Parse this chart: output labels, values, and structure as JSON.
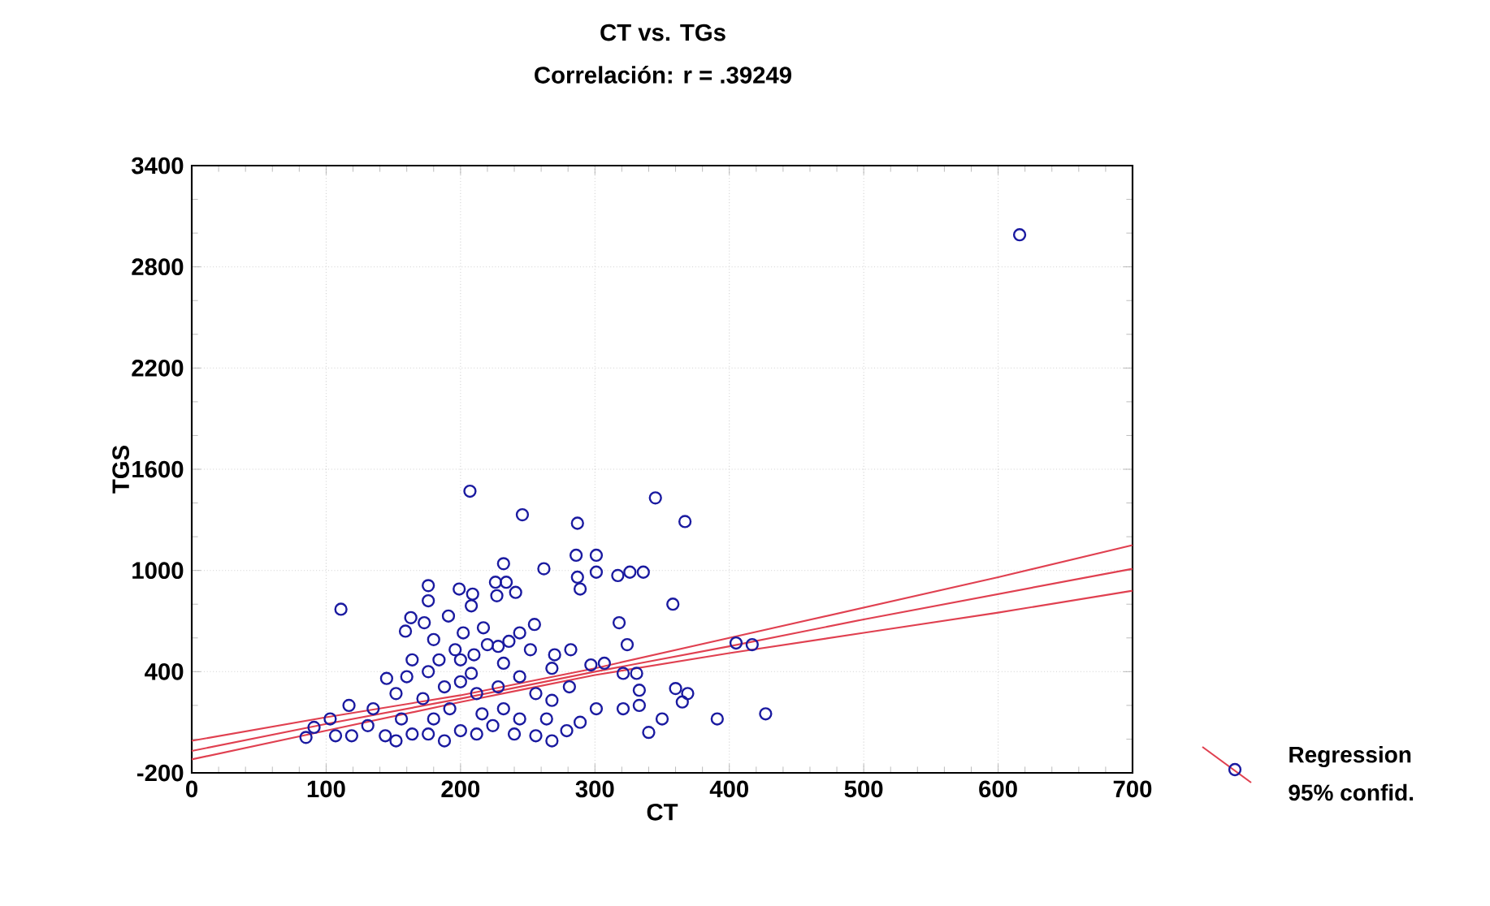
{
  "chart_data": {
    "type": "scatter",
    "title": "CT    vs.    TGs",
    "subtitle": "Correlación: r = .39249",
    "xlabel": "CT",
    "ylabel": "TGS",
    "xlim": [
      0,
      700
    ],
    "ylim": [
      -200,
      3400
    ],
    "xticks": [
      0,
      100,
      200,
      300,
      400,
      500,
      600,
      700
    ],
    "yticks": [
      -200,
      400,
      1000,
      1600,
      2200,
      2800,
      3400
    ],
    "grid": true,
    "legend": "bottom right",
    "annotations": [
      "95% confid."
    ],
    "series": [
      {
        "marker": "circle",
        "color": "#1a1aa0",
        "x": [
          207,
          246,
          287,
          345,
          367,
          286,
          301,
          232,
          262,
          301,
          287,
          289,
          317,
          326,
          336,
          226,
          234,
          227,
          241,
          176,
          176,
          199,
          209,
          208,
          111,
          358,
          163,
          173,
          191,
          159,
          180,
          202,
          217,
          244,
          255,
          318,
          324,
          282,
          405,
          417,
          427,
          391,
          350,
          360,
          369,
          365,
          340,
          117,
          85,
          91,
          103,
          152,
          188,
          268,
          256,
          145,
          164,
          184,
          200,
          210,
          228,
          236,
          252,
          270,
          268,
          297,
          307,
          321,
          331,
          333,
          333,
          321,
          301,
          289,
          279,
          240,
          224,
          212,
          200,
          176,
          164,
          144,
          131,
          119,
          107,
          135,
          152,
          160,
          172,
          188,
          200,
          212,
          228,
          244,
          256,
          268,
          281,
          232,
          216,
          192,
          180,
          156,
          244,
          264,
          208,
          232,
          220,
          196,
          176,
          616
        ],
        "values": [
          1470,
          1330,
          1280,
          1430,
          1290,
          1090,
          1090,
          1040,
          1010,
          990,
          960,
          890,
          970,
          990,
          990,
          930,
          930,
          850,
          870,
          910,
          820,
          890,
          860,
          790,
          770,
          800,
          720,
          690,
          730,
          640,
          590,
          630,
          660,
          630,
          680,
          690,
          560,
          530,
          570,
          560,
          150,
          120,
          120,
          300,
          270,
          220,
          40,
          200,
          10,
          70,
          120,
          -10,
          -10,
          -10,
          20,
          360,
          470,
          470,
          470,
          500,
          550,
          580,
          530,
          500,
          420,
          440,
          450,
          390,
          390,
          290,
          200,
          180,
          180,
          100,
          50,
          30,
          80,
          30,
          50,
          30,
          30,
          20,
          80,
          20,
          20,
          180,
          270,
          370,
          240,
          310,
          340,
          270,
          310,
          370,
          270,
          230,
          310,
          180,
          150,
          180,
          120,
          120,
          120,
          120,
          390,
          450,
          560,
          530,
          400,
          2990
        ]
      },
      {
        "type": "line",
        "name": "Regression",
        "color": "#e04050",
        "line_style": "solid",
        "x": [
          0,
          100,
          200,
          250,
          300,
          400,
          500,
          600,
          700
        ],
        "values": [
          -70,
          90,
          240,
          320,
          400,
          550,
          710,
          860,
          1010
        ]
      },
      {
        "type": "line",
        "color": "#e04050",
        "line_style": "solid",
        "x": [
          0,
          100,
          200,
          250,
          300,
          400,
          500,
          600,
          700
        ],
        "values": [
          -120,
          50,
          220,
          300,
          380,
          510,
          630,
          750,
          880
        ]
      },
      {
        "type": "line",
        "color": "#e04050",
        "line_style": "solid",
        "x": [
          0,
          100,
          200,
          250,
          300,
          400,
          500,
          600,
          700
        ],
        "values": [
          -10,
          130,
          260,
          340,
          420,
          600,
          780,
          960,
          1150
        ]
      }
    ]
  }
}
